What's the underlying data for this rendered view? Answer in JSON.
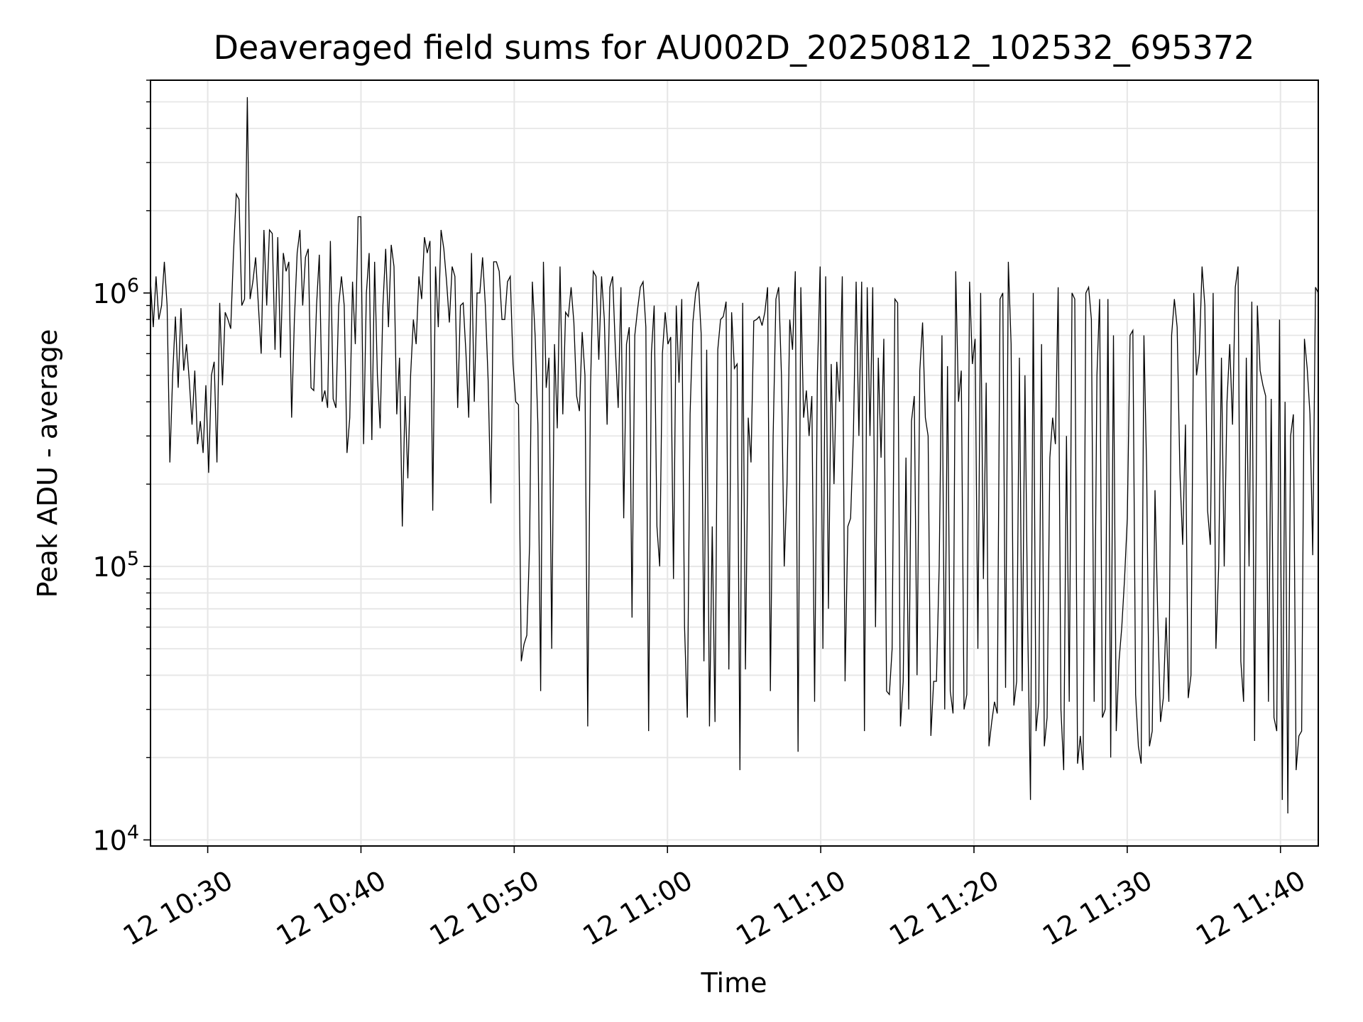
{
  "chart_data": {
    "type": "line",
    "title": "Deaveraged field sums for AU002D_20250812_102532_695372",
    "xlabel": "Time",
    "ylabel": "Peak ADU - average",
    "x_ticks": [
      "12 10:30",
      "12 10:40",
      "12 10:50",
      "12 11:00",
      "12 11:10",
      "12 11:20",
      "12 11:30",
      "12 11:40"
    ],
    "y_ticks": [
      {
        "base": "10",
        "exp": "4",
        "value": 10000
      },
      {
        "base": "10",
        "exp": "5",
        "value": 100000
      },
      {
        "base": "10",
        "exp": "6",
        "value": 1000000
      }
    ],
    "y_scale": "log",
    "ylim": [
      9500,
      6000000
    ],
    "xlim": [
      "2025-08-12 10:26:16",
      "2025-08-12 11:42:28"
    ],
    "grid": true,
    "line_color": "#000000",
    "grid_color": "#e6e6e6",
    "series": [
      {
        "x_start": "2025-08-12 10:26:16",
        "x_end": "2025-08-12 11:42:28",
        "values": [
          1100000,
          750000,
          1150000,
          800000,
          900000,
          1300000,
          900000,
          240000,
          500000,
          820000,
          450000,
          880000,
          520000,
          650000,
          480000,
          330000,
          520000,
          280000,
          340000,
          260000,
          460000,
          220000,
          500000,
          560000,
          240000,
          920000,
          460000,
          850000,
          800000,
          740000,
          1400000,
          2300000,
          2200000,
          900000,
          950000,
          5200000,
          950000,
          1100000,
          1350000,
          900000,
          600000,
          1700000,
          900000,
          1700000,
          1650000,
          620000,
          1600000,
          580000,
          1400000,
          1200000,
          1300000,
          350000,
          800000,
          1400000,
          1700000,
          900000,
          1350000,
          1450000,
          450000,
          440000,
          900000,
          1380000,
          400000,
          440000,
          380000,
          1550000,
          410000,
          380000,
          900000,
          1150000,
          900000,
          260000,
          350000,
          1100000,
          650000,
          1900000,
          1900000,
          280000,
          1000000,
          1400000,
          290000,
          1300000,
          500000,
          320000,
          900000,
          1450000,
          750000,
          1500000,
          1250000,
          360000,
          580000,
          140000,
          420000,
          210000,
          500000,
          800000,
          650000,
          1150000,
          950000,
          1600000,
          1400000,
          1550000,
          160000,
          1250000,
          750000,
          1700000,
          1450000,
          1100000,
          780000,
          1250000,
          1150000,
          380000,
          900000,
          920000,
          600000,
          350000,
          1400000,
          400000,
          1000000,
          1000000,
          1350000,
          900000,
          480000,
          170000,
          1300000,
          1300000,
          1200000,
          800000,
          800000,
          1100000,
          1150000,
          550000,
          400000,
          390000,
          45000,
          52000,
          56000,
          120000,
          1100000,
          700000,
          330000,
          35000,
          1300000,
          450000,
          580000,
          50000,
          650000,
          320000,
          1250000,
          360000,
          850000,
          820000,
          1050000,
          780000,
          420000,
          370000,
          720000,
          500000,
          26000,
          450000,
          1200000,
          1150000,
          570000,
          1150000,
          800000,
          330000,
          1050000,
          1150000,
          620000,
          380000,
          1050000,
          150000,
          650000,
          750000,
          65000,
          700000,
          870000,
          1050000,
          1100000,
          750000,
          25000,
          600000,
          900000,
          140000,
          100000,
          600000,
          850000,
          650000,
          690000,
          90000,
          900000,
          470000,
          950000,
          60000,
          28000,
          360000,
          780000,
          1000000,
          1100000,
          710000,
          45000,
          620000,
          26000,
          140000,
          27000,
          620000,
          800000,
          820000,
          930000,
          42000,
          850000,
          530000,
          550000,
          18000,
          920000,
          42000,
          350000,
          240000,
          790000,
          800000,
          820000,
          760000,
          850000,
          1050000,
          35000,
          300000,
          950000,
          1050000,
          500000,
          100000,
          200000,
          800000,
          620000,
          1200000,
          21000,
          1050000,
          350000,
          440000,
          300000,
          420000,
          32000,
          500000,
          1250000,
          50000,
          1150000,
          70000,
          550000,
          200000,
          560000,
          400000,
          1150000,
          38000,
          140000,
          150000,
          300000,
          1100000,
          300000,
          1100000,
          25000,
          1050000,
          300000,
          1050000,
          60000,
          580000,
          250000,
          680000,
          35000,
          34000,
          50000,
          950000,
          920000,
          26000,
          38000,
          250000,
          30000,
          340000,
          420000,
          40000,
          520000,
          780000,
          350000,
          300000,
          24000,
          38000,
          38000,
          100000,
          700000,
          30000,
          540000,
          35000,
          29000,
          1200000,
          400000,
          520000,
          30000,
          34000,
          1100000,
          550000,
          680000,
          50000,
          1000000,
          90000,
          470000,
          22000,
          27000,
          32000,
          29000,
          950000,
          1000000,
          36000,
          1300000,
          650000,
          31000,
          38000,
          580000,
          35000,
          500000,
          60000,
          14000,
          1000000,
          25000,
          32000,
          650000,
          22000,
          28000,
          250000,
          350000,
          280000,
          1050000,
          30000,
          18000,
          300000,
          32000,
          1000000,
          950000,
          19000,
          24000,
          18000,
          1000000,
          1050000,
          800000,
          32000,
          500000,
          950000,
          28000,
          30000,
          950000,
          20000,
          700000,
          25000,
          45000,
          60000,
          90000,
          150000,
          700000,
          730000,
          34000,
          22000,
          19000,
          700000,
          220000,
          22000,
          25000,
          190000,
          65000,
          27000,
          33000,
          65000,
          32000,
          700000,
          950000,
          750000,
          220000,
          120000,
          330000,
          33000,
          40000,
          1000000,
          500000,
          600000,
          1250000,
          900000,
          160000,
          120000,
          1000000,
          50000,
          100000,
          580000,
          100000,
          400000,
          650000,
          330000,
          1050000,
          1250000,
          45000,
          32000,
          580000,
          100000,
          930000,
          23000,
          900000,
          520000,
          460000,
          420000,
          32000,
          410000,
          28000,
          25000,
          800000,
          14000,
          400000,
          12500,
          300000,
          360000,
          18000,
          24000,
          25000,
          680000,
          530000,
          360000,
          110000,
          1050000,
          1000000
        ]
      }
    ]
  }
}
